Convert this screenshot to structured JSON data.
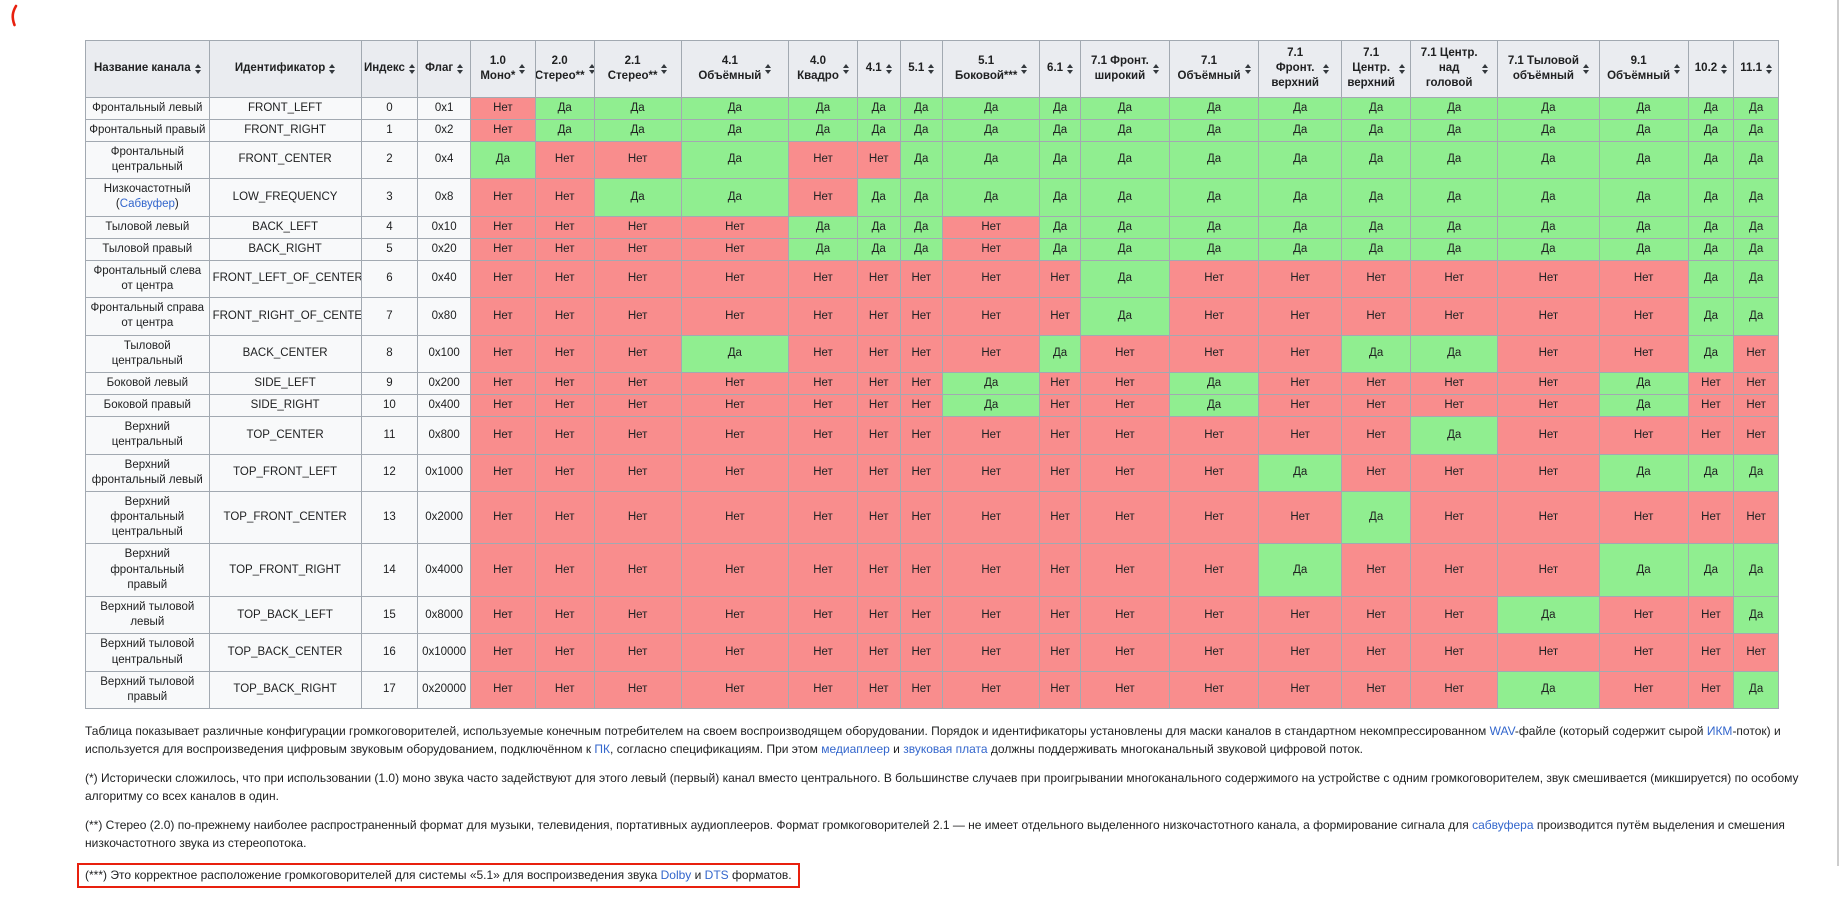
{
  "table": {
    "header": {
      "fixed_columns": [
        {
          "key": "channel-name",
          "label": "Название канала"
        },
        {
          "key": "identifier",
          "label": "Идентификатор"
        },
        {
          "key": "index",
          "label": "Индекс"
        },
        {
          "key": "flag",
          "label": "Флаг"
        }
      ],
      "config_columns": [
        {
          "key": "1-0-mono",
          "label": "1.0\nМоно*"
        },
        {
          "key": "2-0-stereo",
          "label": "2.0\nСтерео**"
        },
        {
          "key": "2-1-stereo",
          "label": "2.1\nСтерео**"
        },
        {
          "key": "4-1-surround",
          "label": "4.1\nОбъёмный"
        },
        {
          "key": "4-0-quad",
          "label": "4.0\nКвадро"
        },
        {
          "key": "4-1",
          "label": "4.1"
        },
        {
          "key": "5-1",
          "label": "5.1"
        },
        {
          "key": "5-1-side",
          "label": "5.1\nБоковой***"
        },
        {
          "key": "6-1",
          "label": "6.1"
        },
        {
          "key": "7-1-front-wide",
          "label": "7.1 Фронт.\nширокий"
        },
        {
          "key": "7-1-surround",
          "label": "7.1\nОбъёмный"
        },
        {
          "key": "7-1-front-high",
          "label": "7.1\nФронт.\nверхний"
        },
        {
          "key": "7-1-center-high",
          "label": "7.1\nЦентр.\nверхний"
        },
        {
          "key": "7-1-center-overhead",
          "label": "7.1 Центр.\nнад\nголовой"
        },
        {
          "key": "7-1-back-surround",
          "label": "7.1 Тыловой\nобъёмный"
        },
        {
          "key": "9-1-surround",
          "label": "9.1\nОбъёмный"
        },
        {
          "key": "10-2",
          "label": "10.2"
        },
        {
          "key": "11-1",
          "label": "11.1"
        }
      ]
    },
    "cell_values": {
      "yes": "Да",
      "no": "Нет"
    },
    "rows": [
      {
        "name": "Фронтальный левый",
        "name_link": null,
        "identifier": "FRONT_LEFT",
        "index": "0",
        "flag": "0x1",
        "configs": [
          "Нет",
          "Да",
          "Да",
          "Да",
          "Да",
          "Да",
          "Да",
          "Да",
          "Да",
          "Да",
          "Да",
          "Да",
          "Да",
          "Да",
          "Да",
          "Да",
          "Да",
          "Да"
        ]
      },
      {
        "name": "Фронтальный правый",
        "name_link": null,
        "identifier": "FRONT_RIGHT",
        "index": "1",
        "flag": "0x2",
        "configs": [
          "Нет",
          "Да",
          "Да",
          "Да",
          "Да",
          "Да",
          "Да",
          "Да",
          "Да",
          "Да",
          "Да",
          "Да",
          "Да",
          "Да",
          "Да",
          "Да",
          "Да",
          "Да"
        ]
      },
      {
        "name": "Фронтальный центральный",
        "name_link": null,
        "identifier": "FRONT_CENTER",
        "index": "2",
        "flag": "0x4",
        "configs": [
          "Да",
          "Нет",
          "Нет",
          "Да",
          "Нет",
          "Нет",
          "Да",
          "Да",
          "Да",
          "Да",
          "Да",
          "Да",
          "Да",
          "Да",
          "Да",
          "Да",
          "Да",
          "Да"
        ]
      },
      {
        "name": "Низкочастотный",
        "name_link": "Сабвуфер",
        "identifier": "LOW_FREQUENCY",
        "index": "3",
        "flag": "0x8",
        "configs": [
          "Нет",
          "Нет",
          "Да",
          "Да",
          "Нет",
          "Да",
          "Да",
          "Да",
          "Да",
          "Да",
          "Да",
          "Да",
          "Да",
          "Да",
          "Да",
          "Да",
          "Да",
          "Да"
        ]
      },
      {
        "name": "Тыловой левый",
        "name_link": null,
        "identifier": "BACK_LEFT",
        "index": "4",
        "flag": "0x10",
        "configs": [
          "Нет",
          "Нет",
          "Нет",
          "Нет",
          "Да",
          "Да",
          "Да",
          "Нет",
          "Да",
          "Да",
          "Да",
          "Да",
          "Да",
          "Да",
          "Да",
          "Да",
          "Да",
          "Да"
        ]
      },
      {
        "name": "Тыловой правый",
        "name_link": null,
        "identifier": "BACK_RIGHT",
        "index": "5",
        "flag": "0x20",
        "configs": [
          "Нет",
          "Нет",
          "Нет",
          "Нет",
          "Да",
          "Да",
          "Да",
          "Нет",
          "Да",
          "Да",
          "Да",
          "Да",
          "Да",
          "Да",
          "Да",
          "Да",
          "Да",
          "Да"
        ]
      },
      {
        "name": "Фронтальный слева от центра",
        "name_link": null,
        "identifier": "FRONT_LEFT_OF_CENTER",
        "index": "6",
        "flag": "0x40",
        "configs": [
          "Нет",
          "Нет",
          "Нет",
          "Нет",
          "Нет",
          "Нет",
          "Нет",
          "Нет",
          "Нет",
          "Да",
          "Нет",
          "Нет",
          "Нет",
          "Нет",
          "Нет",
          "Нет",
          "Да",
          "Да"
        ]
      },
      {
        "name": "Фронтальный справа от центра",
        "name_link": null,
        "identifier": "FRONT_RIGHT_OF_CENTER",
        "index": "7",
        "flag": "0x80",
        "configs": [
          "Нет",
          "Нет",
          "Нет",
          "Нет",
          "Нет",
          "Нет",
          "Нет",
          "Нет",
          "Нет",
          "Да",
          "Нет",
          "Нет",
          "Нет",
          "Нет",
          "Нет",
          "Нет",
          "Да",
          "Да"
        ]
      },
      {
        "name": "Тыловой центральный",
        "name_link": null,
        "identifier": "BACK_CENTER",
        "index": "8",
        "flag": "0x100",
        "configs": [
          "Нет",
          "Нет",
          "Нет",
          "Да",
          "Нет",
          "Нет",
          "Нет",
          "Нет",
          "Да",
          "Нет",
          "Нет",
          "Нет",
          "Да",
          "Да",
          "Нет",
          "Нет",
          "Да",
          "Нет"
        ]
      },
      {
        "name": "Боковой левый",
        "name_link": null,
        "identifier": "SIDE_LEFT",
        "index": "9",
        "flag": "0x200",
        "configs": [
          "Нет",
          "Нет",
          "Нет",
          "Нет",
          "Нет",
          "Нет",
          "Нет",
          "Да",
          "Нет",
          "Нет",
          "Да",
          "Нет",
          "Нет",
          "Нет",
          "Нет",
          "Да",
          "Нет",
          "Нет"
        ]
      },
      {
        "name": "Боковой правый",
        "name_link": null,
        "identifier": "SIDE_RIGHT",
        "index": "10",
        "flag": "0x400",
        "configs": [
          "Нет",
          "Нет",
          "Нет",
          "Нет",
          "Нет",
          "Нет",
          "Нет",
          "Да",
          "Нет",
          "Нет",
          "Да",
          "Нет",
          "Нет",
          "Нет",
          "Нет",
          "Да",
          "Нет",
          "Нет"
        ]
      },
      {
        "name": "Верхний центральный",
        "name_link": null,
        "identifier": "TOP_CENTER",
        "index": "11",
        "flag": "0x800",
        "configs": [
          "Нет",
          "Нет",
          "Нет",
          "Нет",
          "Нет",
          "Нет",
          "Нет",
          "Нет",
          "Нет",
          "Нет",
          "Нет",
          "Нет",
          "Нет",
          "Да",
          "Нет",
          "Нет",
          "Нет",
          "Нет"
        ]
      },
      {
        "name": "Верхний фронтальный левый",
        "name_link": null,
        "identifier": "TOP_FRONT_LEFT",
        "index": "12",
        "flag": "0x1000",
        "configs": [
          "Нет",
          "Нет",
          "Нет",
          "Нет",
          "Нет",
          "Нет",
          "Нет",
          "Нет",
          "Нет",
          "Нет",
          "Нет",
          "Да",
          "Нет",
          "Нет",
          "Нет",
          "Да",
          "Да",
          "Да"
        ]
      },
      {
        "name": "Верхний фронтальный центральный",
        "name_link": null,
        "identifier": "TOP_FRONT_CENTER",
        "index": "13",
        "flag": "0x2000",
        "configs": [
          "Нет",
          "Нет",
          "Нет",
          "Нет",
          "Нет",
          "Нет",
          "Нет",
          "Нет",
          "Нет",
          "Нет",
          "Нет",
          "Нет",
          "Да",
          "Нет",
          "Нет",
          "Нет",
          "Нет",
          "Нет"
        ]
      },
      {
        "name": "Верхний фронтальный правый",
        "name_link": null,
        "identifier": "TOP_FRONT_RIGHT",
        "index": "14",
        "flag": "0x4000",
        "configs": [
          "Нет",
          "Нет",
          "Нет",
          "Нет",
          "Нет",
          "Нет",
          "Нет",
          "Нет",
          "Нет",
          "Нет",
          "Нет",
          "Да",
          "Нет",
          "Нет",
          "Нет",
          "Да",
          "Да",
          "Да"
        ]
      },
      {
        "name": "Верхний тыловой левый",
        "name_link": null,
        "identifier": "TOP_BACK_LEFT",
        "index": "15",
        "flag": "0x8000",
        "configs": [
          "Нет",
          "Нет",
          "Нет",
          "Нет",
          "Нет",
          "Нет",
          "Нет",
          "Нет",
          "Нет",
          "Нет",
          "Нет",
          "Нет",
          "Нет",
          "Нет",
          "Да",
          "Нет",
          "Нет",
          "Да"
        ]
      },
      {
        "name": "Верхний тыловой центральный",
        "name_link": null,
        "identifier": "TOP_BACK_CENTER",
        "index": "16",
        "flag": "0x10000",
        "configs": [
          "Нет",
          "Нет",
          "Нет",
          "Нет",
          "Нет",
          "Нет",
          "Нет",
          "Нет",
          "Нет",
          "Нет",
          "Нет",
          "Нет",
          "Нет",
          "Нет",
          "Нет",
          "Нет",
          "Нет",
          "Нет"
        ]
      },
      {
        "name": "Верхний тыловой правый",
        "name_link": null,
        "identifier": "TOP_BACK_RIGHT",
        "index": "17",
        "flag": "0x20000",
        "configs": [
          "Нет",
          "Нет",
          "Нет",
          "Нет",
          "Нет",
          "Нет",
          "Нет",
          "Нет",
          "Нет",
          "Нет",
          "Нет",
          "Нет",
          "Нет",
          "Нет",
          "Да",
          "Нет",
          "Нет",
          "Да"
        ]
      }
    ]
  },
  "footnotes": {
    "paragraphs": [
      {
        "boxed": false,
        "segments": [
          {
            "text": "Таблица показывает различные конфигурации громкоговорителей, используемые конечным потребителем на своем воспроизводящем оборудовании. Порядок и идентификаторы установлены для маски каналов в стандартном некомпрессированном ",
            "link": false
          },
          {
            "text": "WAV",
            "link": true,
            "key": "wav-link"
          },
          {
            "text": "-файле (который содержит сырой ",
            "link": false
          },
          {
            "text": "ИКМ",
            "link": true,
            "key": "pcm-link"
          },
          {
            "text": "-поток) и используется для воспроизведения цифровым звуковым оборудованием, подключённом к ",
            "link": false
          },
          {
            "text": "ПК",
            "link": true,
            "key": "pc-link"
          },
          {
            "text": ", согласно спецификациям. При этом ",
            "link": false
          },
          {
            "text": "медиаплеер",
            "link": true,
            "key": "media-player-link"
          },
          {
            "text": " и ",
            "link": false
          },
          {
            "text": "звуковая плата",
            "link": true,
            "key": "sound-card-link"
          },
          {
            "text": " должны поддерживать многоканальный звуковой цифровой поток.",
            "link": false
          }
        ]
      },
      {
        "boxed": false,
        "segments": [
          {
            "text": "(*) Исторически сложилось, что при использовании (1.0) моно звука часто задействуют для этого левый (первый) канал вместо центрального. В большинстве случаев при проигрывании многоканального содержимого на устройстве с одним громкоговорителем, звук смешивается (микшируется) по особому алгоритму со всех каналов в один.",
            "link": false
          }
        ]
      },
      {
        "boxed": false,
        "segments": [
          {
            "text": "(**) Стерео (2.0) по-прежнему наиболее распространенный формат для музыки, телевидения, портативных аудиоплееров. Формат громкоговорителей 2.1 — не имеет отдельного выделенного низкочастотного канала, а формирование сигнала для ",
            "link": false
          },
          {
            "text": "сабвуфера",
            "link": true,
            "key": "subwoofer-link"
          },
          {
            "text": " производится путём выделения и смешения низкочастотного звука из стереопотока.",
            "link": false
          }
        ]
      },
      {
        "boxed": true,
        "segments": [
          {
            "text": "(***) Это корректное расположение громкоговорителей для системы «5.1» для воспроизведения звука ",
            "link": false
          },
          {
            "text": "Dolby",
            "link": true,
            "key": "dolby-link"
          },
          {
            "text": " и ",
            "link": false
          },
          {
            "text": "DTS",
            "link": true,
            "key": "dts-link"
          },
          {
            "text": " форматов.",
            "link": false
          }
        ]
      }
    ]
  },
  "colors": {
    "yes_bg": "#90ee90",
    "no_bg": "#f98d8d",
    "header_bg": "#eaecf0",
    "meta_bg": "#f8f9fa",
    "border": "#a2a9b1",
    "link": "#3366cc",
    "text": "#202122",
    "annotation": "#e8200e"
  }
}
